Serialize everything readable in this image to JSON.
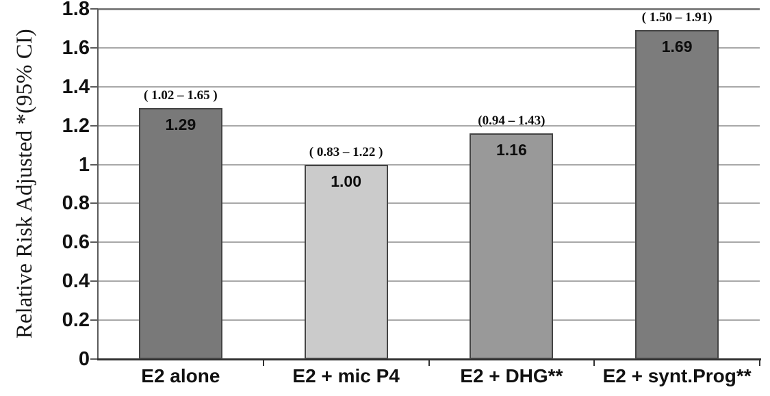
{
  "chart_data": {
    "type": "bar",
    "title": "",
    "ylabel": "Relative Risk Adjusted *",
    "ylabel_line2": "(95% CI)",
    "categories": [
      "E2 alone",
      "E2 + mic P4",
      "E2 + DHG**",
      "E2 + synt.Prog**"
    ],
    "values": [
      1.29,
      1.0,
      1.16,
      1.69
    ],
    "value_labels": [
      "1.29",
      "1.00",
      "1.16",
      "1.69"
    ],
    "ci_labels": [
      "( 1.02 – 1.65 )",
      "( 0.83 – 1.22 )",
      "(0.94 – 1.43)",
      "( 1.50 – 1.91)"
    ],
    "confidence_intervals": [
      [
        1.02,
        1.65
      ],
      [
        0.83,
        1.22
      ],
      [
        0.94,
        1.43
      ],
      [
        1.5,
        1.91
      ]
    ],
    "bar_colors": [
      "#797979",
      "#cbcbcb",
      "#999999",
      "#7c7c7c"
    ],
    "bar_border_color": "#444444",
    "ylim": [
      0,
      1.8
    ],
    "ytick_step": 0.2,
    "ytick_labels": [
      "0",
      "0.2",
      "0.4",
      "0.6",
      "0.8",
      "1",
      "1.2",
      "1.4",
      "1.6",
      "1.8"
    ],
    "grid": true,
    "legend": "none",
    "grid_color": "#a8a8a8",
    "axis_color": "#303030",
    "frame_top_color": "#7f7f7f",
    "text_color": "#111111",
    "background_color": "#ffffff"
  }
}
